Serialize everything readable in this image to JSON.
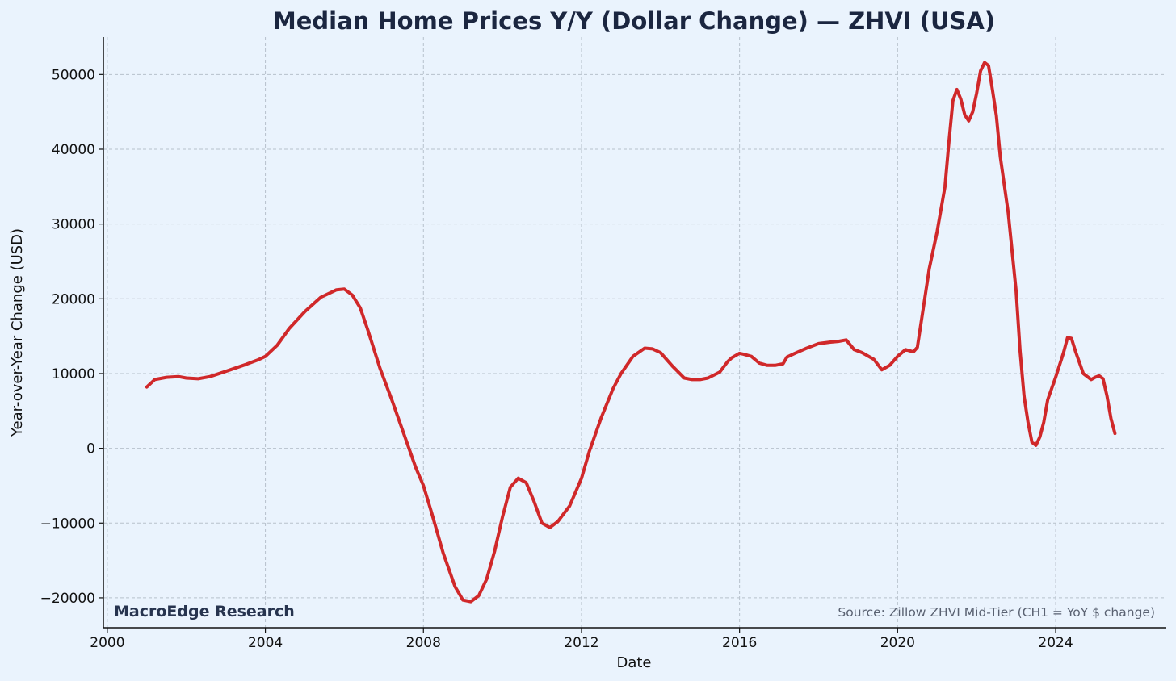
{
  "colors": {
    "background": "#eaf3fd",
    "line": "#d0282a",
    "axis": "#111111",
    "grid": "#b7c1cc",
    "title": "#1b2640"
  },
  "branding": "MacroEdge Research",
  "source_note": "Source: Zillow ZHVI Mid-Tier (CH1 = YoY $ change)",
  "chart_data": {
    "type": "line",
    "title": "Median Home Prices Y/Y (Dollar Change) — ZHVI (USA)",
    "xlabel": "Date",
    "ylabel": "Year-over-Year Change (USD)",
    "xlim": [
      1999.9,
      2026.8
    ],
    "ylim": [
      -24000,
      55000
    ],
    "x_ticks": [
      2000,
      2004,
      2008,
      2012,
      2016,
      2020,
      2024
    ],
    "y_ticks": [
      -20000,
      -10000,
      0,
      10000,
      20000,
      30000,
      40000,
      50000
    ],
    "y_tick_labels": [
      "−20000",
      "−10000",
      "0",
      "10000",
      "20000",
      "30000",
      "40000",
      "50000"
    ],
    "grid": true,
    "legend": "none",
    "series": [
      {
        "x": [
          2001.0,
          2001.2,
          2001.5,
          2001.8,
          2002.0,
          2002.3,
          2002.6,
          2003.0,
          2003.5,
          2003.8,
          2004.0,
          2004.3,
          2004.6,
          2005.0,
          2005.4,
          2005.8,
          2006.0,
          2006.2,
          2006.4,
          2006.6,
          2006.9,
          2007.2,
          2007.5,
          2007.8,
          2008.0,
          2008.2,
          2008.5,
          2008.8,
          2009.0,
          2009.2,
          2009.4,
          2009.6,
          2009.8,
          2010.0,
          2010.2,
          2010.4,
          2010.6,
          2010.8,
          2011.0,
          2011.2,
          2011.4,
          2011.5,
          2011.7,
          2012.0,
          2012.2,
          2012.5,
          2012.8,
          2013.0,
          2013.3,
          2013.6,
          2013.8,
          2014.0,
          2014.3,
          2014.6,
          2014.8,
          2015.0,
          2015.2,
          2015.5,
          2015.7,
          2015.8,
          2016.0,
          2016.1,
          2016.3,
          2016.5,
          2016.7,
          2016.9,
          2017.1,
          2017.2,
          2017.4,
          2017.7,
          2018.0,
          2018.3,
          2018.5,
          2018.7,
          2018.9,
          2019.1,
          2019.4,
          2019.6,
          2019.8,
          2020.0,
          2020.2,
          2020.4,
          2020.5,
          2020.6,
          2020.8,
          2021.0,
          2021.2,
          2021.3,
          2021.4,
          2021.5,
          2021.6,
          2021.7,
          2021.8,
          2021.9,
          2022.0,
          2022.1,
          2022.2,
          2022.3,
          2022.4,
          2022.5,
          2022.6,
          2022.8,
          2023.0,
          2023.1,
          2023.2,
          2023.3,
          2023.4,
          2023.5,
          2023.6,
          2023.7,
          2023.8,
          2024.0,
          2024.2,
          2024.3,
          2024.4,
          2024.5,
          2024.7,
          2024.9,
          2025.0,
          2025.1,
          2025.2,
          2025.3,
          2025.4,
          2025.5
        ],
        "y": [
          8200,
          9200,
          9500,
          9600,
          9400,
          9300,
          9600,
          10300,
          11200,
          11800,
          12300,
          13800,
          16000,
          18300,
          20200,
          21200,
          21300,
          20500,
          18800,
          15700,
          10700,
          6500,
          2000,
          -2500,
          -5000,
          -8500,
          -14000,
          -18500,
          -20300,
          -20500,
          -19700,
          -17500,
          -13800,
          -9200,
          -5200,
          -4000,
          -4600,
          -7100,
          -10000,
          -10600,
          -9800,
          -9100,
          -7700,
          -4000,
          -400,
          4100,
          8000,
          10000,
          12300,
          13400,
          13300,
          12800,
          11000,
          9400,
          9200,
          9200,
          9400,
          10200,
          11600,
          12100,
          12700,
          12600,
          12300,
          11400,
          11100,
          11100,
          11300,
          12200,
          12700,
          13400,
          14000,
          14200,
          14300,
          14500,
          13200,
          12800,
          11900,
          10500,
          11100,
          12300,
          13200,
          12900,
          13500,
          17000,
          24000,
          29000,
          35000,
          41000,
          46500,
          48000,
          46700,
          44600,
          43800,
          45000,
          47500,
          50500,
          51600,
          51200,
          48000,
          44500,
          39000,
          31500,
          21000,
          13000,
          7000,
          3500,
          800,
          400,
          1500,
          3500,
          6500,
          9500,
          12800,
          14800,
          14700,
          13000,
          10000,
          9200,
          9500,
          9700,
          9300,
          7000,
          4000,
          2000
        ]
      }
    ]
  }
}
